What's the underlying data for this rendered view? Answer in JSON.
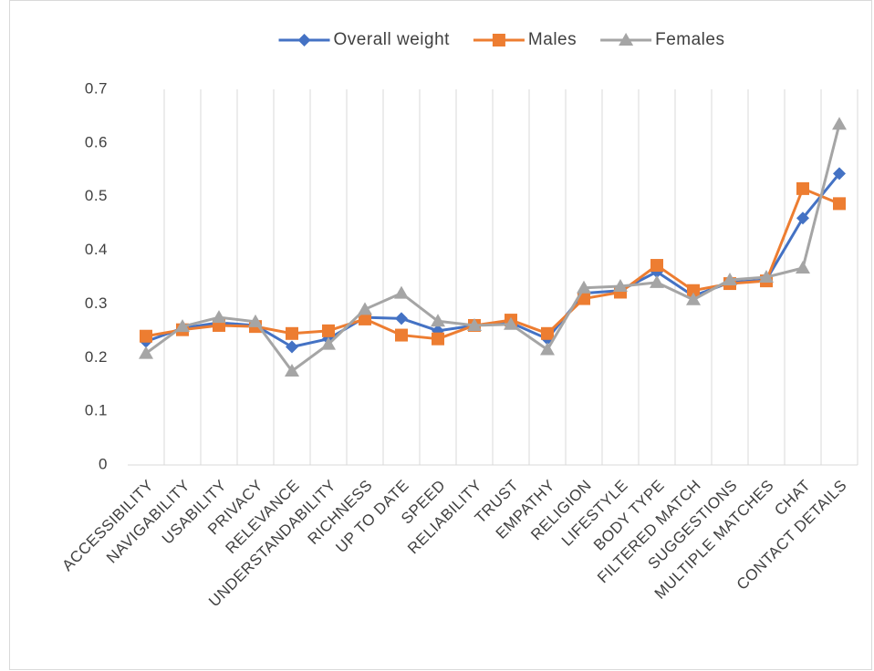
{
  "chart_data": {
    "type": "line",
    "categories": [
      "ACCESSIBILITY",
      "NAVIGABILITY",
      "USABILITY",
      "PRIVACY",
      "RELEVANCE",
      "UNDERSTANDABILITY",
      "RICHNESS",
      "UP TO DATE",
      "SPEED",
      "RELIABILITY",
      "TRUST",
      "EMPATHY",
      "RELIGION",
      "LIFESTYLE",
      "BODY TYPE",
      "FILTERED MATCH",
      "SUGGESTIONS",
      "MULTIPLE MATCHES",
      "CHAT",
      "CONTACT DETAILS"
    ],
    "series": [
      {
        "name": "Overall weight",
        "color": "#4472c4",
        "marker": "diamond",
        "values": [
          0.23,
          0.255,
          0.265,
          0.26,
          0.22,
          0.235,
          0.275,
          0.273,
          0.25,
          0.26,
          0.265,
          0.235,
          0.32,
          0.325,
          0.36,
          0.315,
          0.34,
          0.345,
          0.46,
          0.543
        ]
      },
      {
        "name": "Males",
        "color": "#ed7d31",
        "marker": "square",
        "values": [
          0.24,
          0.252,
          0.26,
          0.258,
          0.245,
          0.25,
          0.272,
          0.242,
          0.235,
          0.26,
          0.27,
          0.245,
          0.31,
          0.322,
          0.372,
          0.325,
          0.338,
          0.343,
          0.515,
          0.487
        ]
      },
      {
        "name": "Females",
        "color": "#a5a5a5",
        "marker": "triangle",
        "values": [
          0.208,
          0.258,
          0.275,
          0.267,
          0.175,
          0.225,
          0.29,
          0.32,
          0.268,
          0.26,
          0.262,
          0.215,
          0.33,
          0.333,
          0.34,
          0.308,
          0.345,
          0.35,
          0.367,
          0.635
        ]
      }
    ],
    "ylim": [
      0,
      0.7
    ],
    "yticks": [
      0,
      0.1,
      0.2,
      0.3,
      0.4,
      0.5,
      0.6,
      0.7
    ],
    "xgrid": true,
    "legend": "top"
  }
}
